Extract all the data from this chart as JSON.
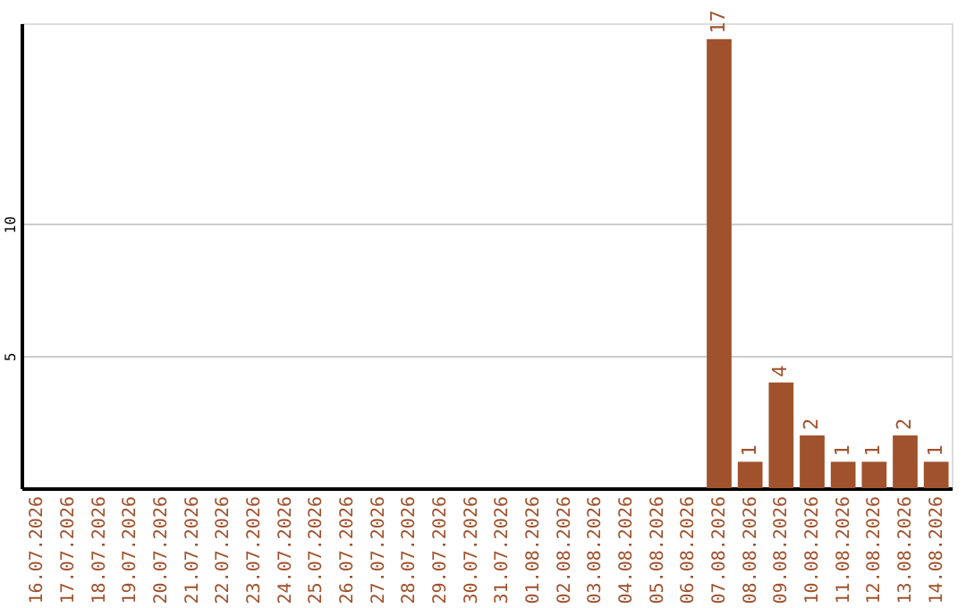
{
  "chart_data": {
    "type": "bar",
    "categories": [
      "16.07.2026",
      "17.07.2026",
      "18.07.2026",
      "19.07.2026",
      "20.07.2026",
      "21.07.2026",
      "22.07.2026",
      "23.07.2026",
      "24.07.2026",
      "25.07.2026",
      "26.07.2026",
      "27.07.2026",
      "28.07.2026",
      "29.07.2026",
      "30.07.2026",
      "31.07.2026",
      "01.08.2026",
      "02.08.2026",
      "03.08.2026",
      "04.08.2026",
      "05.08.2026",
      "06.08.2026",
      "07.08.2026",
      "08.08.2026",
      "09.08.2026",
      "10.08.2026",
      "11.08.2026",
      "12.08.2026",
      "13.08.2026",
      "14.08.2026"
    ],
    "values": [
      0,
      0,
      0,
      0,
      0,
      0,
      0,
      0,
      0,
      0,
      0,
      0,
      0,
      0,
      0,
      0,
      0,
      0,
      0,
      0,
      0,
      0,
      17,
      1,
      4,
      2,
      1,
      1,
      2,
      1
    ],
    "value_labels": [
      null,
      null,
      null,
      null,
      null,
      null,
      null,
      null,
      null,
      null,
      null,
      null,
      null,
      null,
      null,
      null,
      null,
      null,
      null,
      null,
      null,
      null,
      "17",
      "1",
      "4",
      "2",
      "1",
      "1",
      "2",
      "1"
    ],
    "color": "#a0522d",
    "ylim": [
      0,
      17.6
    ],
    "yticks": [
      5,
      10
    ],
    "grid": "y"
  }
}
